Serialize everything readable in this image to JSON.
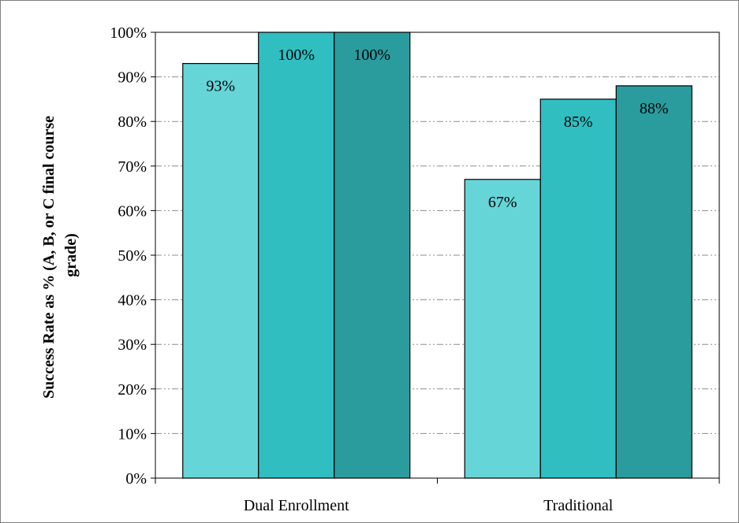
{
  "chart_data": {
    "type": "bar",
    "categories": [
      "Dual Enrollment",
      "Traditional"
    ],
    "series": [
      {
        "values": [
          93,
          67
        ],
        "color": "#66d5d8"
      },
      {
        "values": [
          100,
          85
        ],
        "color": "#30bec1"
      },
      {
        "values": [
          100,
          88
        ],
        "color": "#2a9c9e"
      }
    ],
    "data_labels": [
      [
        "93%",
        "67%"
      ],
      [
        "100%",
        "85%"
      ],
      [
        "100%",
        "88%"
      ]
    ],
    "ylabel_lines": [
      "Success Rate as % (A, B, or C final course",
      "grade)"
    ],
    "ylim": [
      0,
      100
    ],
    "yticks": [
      0,
      10,
      20,
      30,
      40,
      50,
      60,
      70,
      80,
      90,
      100
    ],
    "ytick_labels": [
      "0%",
      "10%",
      "20%",
      "30%",
      "40%",
      "50%",
      "60%",
      "70%",
      "80%",
      "90%",
      "100%"
    ],
    "grid": "horizontal dash-dot",
    "legend": "none",
    "colors": {
      "grid": "#8c8c8c",
      "axis": "#7f7f7f",
      "bar_outline": "#000000"
    }
  }
}
